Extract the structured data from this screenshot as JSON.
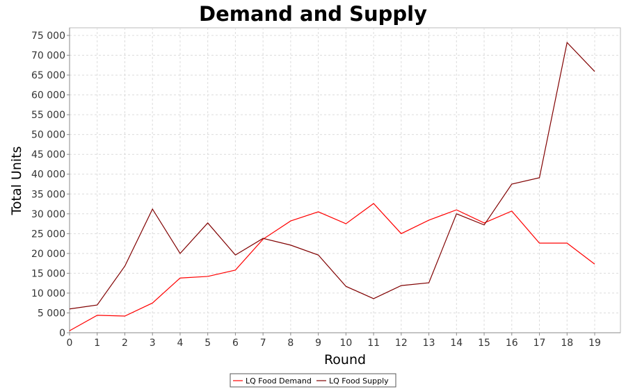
{
  "chart_data": {
    "type": "line",
    "title": "Demand and Supply",
    "xlabel": "Round",
    "ylabel": "Total Units",
    "x": [
      0,
      1,
      2,
      3,
      4,
      5,
      6,
      7,
      8,
      9,
      10,
      11,
      12,
      13,
      14,
      15,
      16,
      17,
      18,
      19
    ],
    "xlim": [
      0,
      19.9
    ],
    "ylim": [
      0,
      75000
    ],
    "yticks": [
      0,
      5000,
      10000,
      15000,
      20000,
      25000,
      30000,
      35000,
      40000,
      45000,
      50000,
      55000,
      60000,
      65000,
      70000,
      75000
    ],
    "ytick_labels": [
      "0",
      "5 000",
      "10 000",
      "15 000",
      "20 000",
      "25 000",
      "30 000",
      "35 000",
      "40 000",
      "45 000",
      "50 000",
      "55 000",
      "60 000",
      "65 000",
      "70 000",
      "75 000"
    ],
    "grid": true,
    "legend_position": "bottom-center",
    "series": [
      {
        "name": "LQ Food Demand",
        "color": "#ff0000",
        "values": [
          500,
          4400,
          4200,
          7500,
          13800,
          14200,
          15800,
          23600,
          28200,
          30500,
          27500,
          32600,
          25000,
          28400,
          31000,
          27700,
          30700,
          22600,
          22600,
          17300
        ]
      },
      {
        "name": "LQ Food Supply",
        "color": "#800000",
        "values": [
          6000,
          7000,
          16800,
          31200,
          20000,
          27700,
          19600,
          23800,
          22100,
          19600,
          11700,
          8600,
          11900,
          12600,
          30000,
          27200,
          37500,
          39100,
          73200,
          65900
        ]
      }
    ]
  }
}
